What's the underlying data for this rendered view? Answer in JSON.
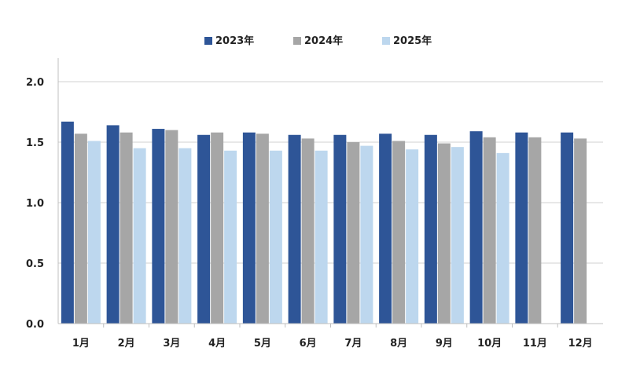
{
  "chart_data": {
    "type": "bar",
    "categories": [
      "1月",
      "2月",
      "3月",
      "4月",
      "5月",
      "6月",
      "7月",
      "8月",
      "9月",
      "10月",
      "11月",
      "12月"
    ],
    "series": [
      {
        "name": "2023年",
        "color": "#2e5597",
        "values": [
          1.67,
          1.64,
          1.61,
          1.56,
          1.58,
          1.56,
          1.56,
          1.57,
          1.56,
          1.59,
          1.58,
          1.58
        ]
      },
      {
        "name": "2024年",
        "color": "#a6a6a6",
        "values": [
          1.57,
          1.58,
          1.6,
          1.58,
          1.57,
          1.53,
          1.5,
          1.51,
          1.49,
          1.54,
          1.54,
          1.53
        ]
      },
      {
        "name": "2025年",
        "color": "#bdd7ee",
        "values": [
          1.51,
          1.45,
          1.45,
          1.43,
          1.43,
          1.43,
          1.47,
          1.44,
          1.46,
          1.41,
          null,
          null
        ]
      }
    ],
    "yticks": [
      "0.0",
      "0.5",
      "1.0",
      "1.5",
      "2.0"
    ],
    "ylim": [
      0,
      2.0
    ],
    "grid": true,
    "legend_position": "top",
    "title": "",
    "xlabel": "",
    "ylabel": ""
  }
}
